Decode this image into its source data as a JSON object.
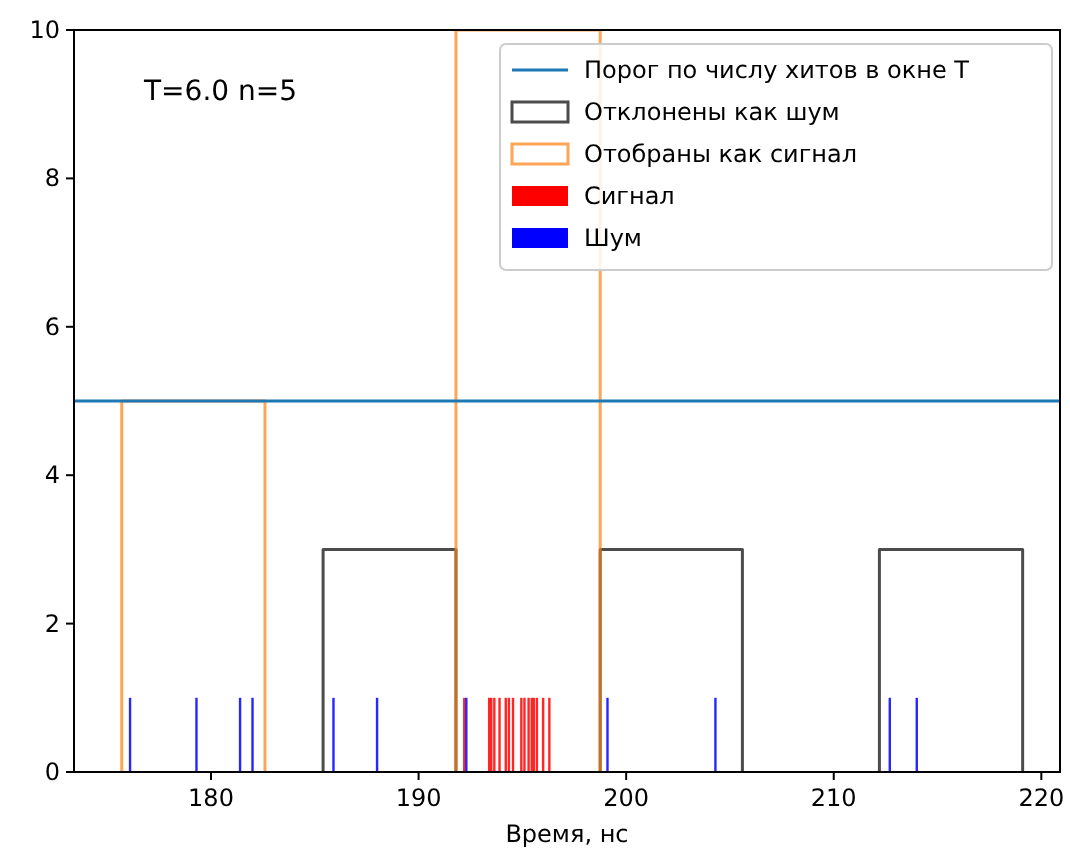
{
  "chart_data": {
    "type": "bar",
    "xlabel": "Время, нс",
    "annotations": [
      "T=6.0 n=5"
    ],
    "xlim": [
      173.4,
      220.9
    ],
    "xticks": [
      180,
      190,
      200,
      210,
      220
    ],
    "ylim": [
      0,
      10
    ],
    "yticks": [
      0,
      2,
      4,
      6,
      8,
      10
    ],
    "grid": false,
    "legend": "top right",
    "ref_lines": [
      {
        "axis": "y",
        "value": 5,
        "label": "Порог по числу хитов в окне T",
        "color": "#1f77b4"
      }
    ],
    "series": [
      {
        "name": "Отклонены как шум",
        "type": "line",
        "color": "#000000",
        "x": [
          185.4,
          185.4,
          191.8,
          191.8,
          195,
          198.75,
          198.75,
          205.6,
          205.6,
          209,
          212.2,
          212.2,
          219.1,
          219.1
        ],
        "values": [
          0,
          3,
          3,
          0,
          null,
          0,
          3,
          3,
          0,
          null,
          0,
          3,
          3,
          0
        ]
      },
      {
        "name": "Отобраны как сигнал",
        "type": "line",
        "color": "#ff7f0e",
        "x": [
          175.7,
          175.7,
          182.6,
          182.6,
          187,
          191.8,
          191.8,
          198.75,
          198.75
        ],
        "values": [
          0,
          5,
          5,
          0,
          null,
          0,
          10,
          10,
          0
        ]
      },
      {
        "name": "Сигнал",
        "color": "#ff0000",
        "x": [
          192.2,
          193.4,
          193.5,
          193.65,
          193.9,
          194.2,
          194.35,
          194.55,
          194.95,
          195.1,
          195.3,
          195.45,
          195.55,
          195.7,
          196.0,
          196.3
        ],
        "values": [
          1,
          1,
          1,
          1,
          1,
          1,
          1,
          1,
          1,
          1,
          1,
          1,
          1,
          1,
          1,
          1
        ]
      },
      {
        "name": "Шум",
        "color": "#0000ff",
        "x": [
          176.1,
          179.3,
          181.4,
          182.0,
          185.9,
          188.0,
          192.3,
          199.1,
          204.3,
          212.7,
          214.0
        ],
        "values": [
          1,
          1,
          1,
          1,
          1,
          1,
          1,
          1,
          1,
          1,
          1
        ]
      }
    ]
  }
}
